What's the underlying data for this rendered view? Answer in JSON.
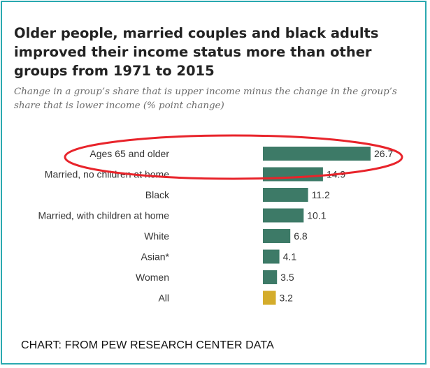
{
  "title": "Older people, married couples and black adults improved their income status more than other groups from 1971 to 2015",
  "subtitle": "Change in a group’s share that is upper income minus the change in the group’s share that is lower income (% point change)",
  "source": "CHART: FROM PEW RESEARCH CENTER DATA",
  "colors": {
    "bar": "#3d7a67",
    "highlight_bar": "#d4ac2b",
    "circle": "#e8242b",
    "frame": "#2aa9b0"
  },
  "chart_data": {
    "type": "bar",
    "orientation": "horizontal",
    "title": "Older people, married couples and black adults improved their income status more than other groups from 1971 to 2015",
    "subtitle": "Change in a group’s share that is upper income minus the change in the group’s share that is lower income (% point change)",
    "categories": [
      "Ages 65 and older",
      "Married, no children at home",
      "Black",
      "Married, with children at home",
      "White",
      "Asian*",
      "Women",
      "All"
    ],
    "values": [
      26.7,
      14.9,
      11.2,
      10.1,
      6.8,
      4.1,
      3.5,
      3.2
    ],
    "value_labels": [
      "26.7",
      "14.9",
      "11.2",
      "10.1",
      "6.8",
      "4.1",
      "3.5",
      "3.2"
    ],
    "highlighted_category": "All",
    "circled_category": "Ages 65 and older",
    "xlim": [
      0,
      26.7
    ],
    "grid": false,
    "legend": "none"
  }
}
